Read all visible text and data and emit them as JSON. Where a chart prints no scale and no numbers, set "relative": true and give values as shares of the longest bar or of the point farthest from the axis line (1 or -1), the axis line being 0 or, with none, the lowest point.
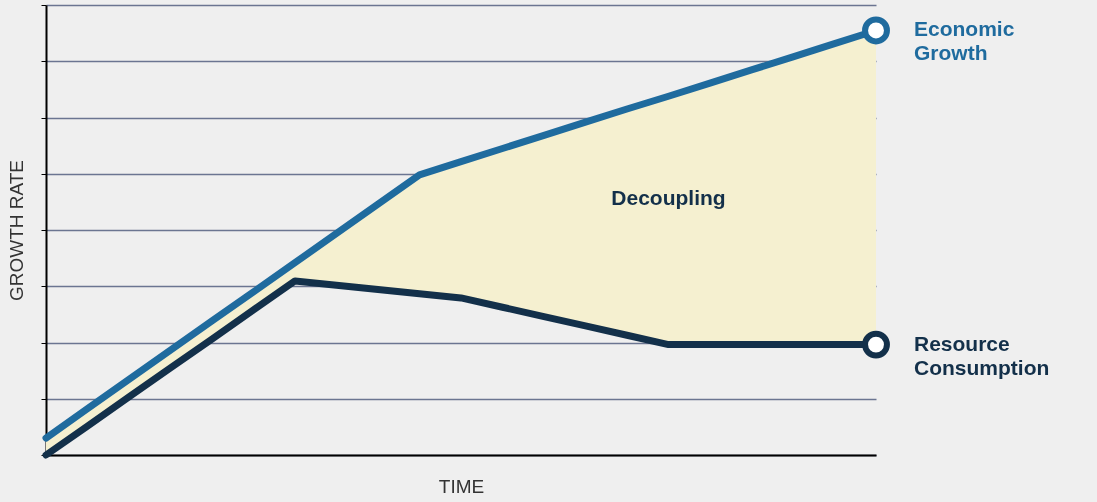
{
  "chart_data": {
    "type": "line",
    "relative": true,
    "xlabel": "TIME",
    "ylabel": "GROWTH RATE",
    "grid": "y",
    "legend": "right",
    "categories": [
      null,
      null,
      null,
      null,
      null,
      null,
      null,
      null,
      null,
      null,
      null,
      null,
      null,
      null,
      null,
      null,
      null,
      null,
      null,
      null,
      null
    ],
    "series": [
      {
        "name": "Economic Growth",
        "color": "#1f6b9e",
        "values": [
          0.04,
          0.109,
          0.178,
          0.247,
          0.316,
          0.384,
          0.453,
          0.522,
          0.591,
          0.66,
          0.691,
          0.722,
          0.753,
          0.784,
          0.815,
          0.845,
          0.876,
          0.907,
          0.938,
          0.969,
          1
        ],
        "lower": [
          0,
          0.068,
          0.137,
          0.205,
          0.273,
          0.342,
          0.41,
          0.4,
          0.39,
          0.38,
          0.37,
          0.348,
          0.326,
          0.304,
          0.282,
          0.26,
          0.26,
          0.26,
          0.26,
          0.26,
          0.26
        ],
        "upper": [
          0.04,
          0.109,
          0.178,
          0.247,
          0.316,
          0.384,
          0.453,
          0.522,
          0.591,
          0.66,
          0.691,
          0.722,
          0.753,
          0.784,
          0.815,
          0.845,
          0.876,
          0.907,
          0.938,
          0.969,
          1
        ]
      },
      {
        "name": "Resource Consumption",
        "color": "#13304a",
        "values": [
          0,
          0.068,
          0.137,
          0.205,
          0.273,
          0.342,
          0.41,
          0.4,
          0.39,
          0.38,
          0.37,
          0.348,
          0.326,
          0.304,
          0.282,
          0.26,
          0.26,
          0.26,
          0.26,
          0.26,
          0.26
        ]
      }
    ],
    "annotations": [
      "Decoupling"
    ]
  }
}
